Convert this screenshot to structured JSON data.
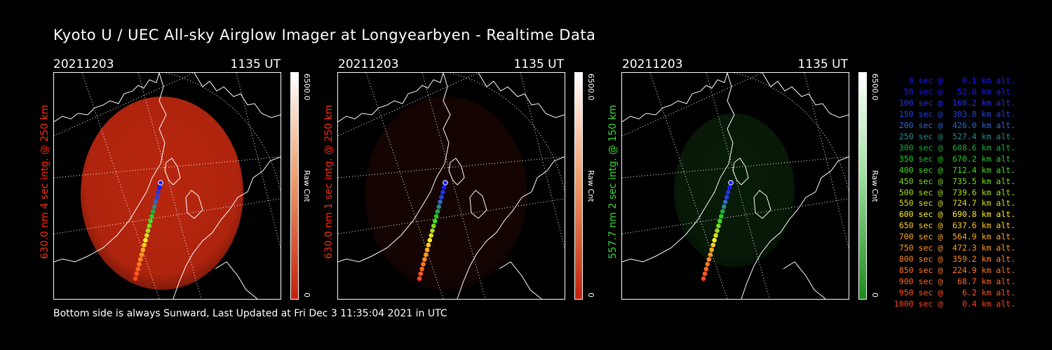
{
  "title": "Kyoto U / UEC All-sky Airglow Imager at Longyearbyen - Realtime Data",
  "panels": [
    {
      "date": "20211203",
      "time": "1135 UT",
      "side_label": "630.0 nm 4 sec intg. @ 250 km",
      "side_color": "#ff2a10",
      "colorbar_max": "6500.0",
      "colorbar_min": "0",
      "colorbar_unit": "Raw Cnt",
      "emission_color": "#cc2a10",
      "emission_intensity": 0.9
    },
    {
      "date": "20211203",
      "time": "1135 UT",
      "side_label": "630.0 nm 1 sec intg. @ 250 km",
      "side_color": "#ff2a10",
      "colorbar_max": "6500.0",
      "colorbar_min": "0",
      "colorbar_unit": "Raw Cnt",
      "emission_color": "#3a0c06",
      "emission_intensity": 0.35
    },
    {
      "date": "20211203",
      "time": "1135 UT",
      "side_label": "557.7 nm 2 sec intg. @ 150 km",
      "side_color": "#3ad83a",
      "colorbar_max": "6500.0",
      "colorbar_min": "0",
      "colorbar_unit": "Raw Cnt",
      "emission_color": "#123a12",
      "emission_intensity": 0.45
    }
  ],
  "legend": [
    {
      "text": "   0 sec @    0.1 km alt.",
      "color": "#1a1aff"
    },
    {
      "text": "  50 sec @   52.0 km alt.",
      "color": "#1a1aff"
    },
    {
      "text": " 100 sec @  160.2 km alt.",
      "color": "#2233ee"
    },
    {
      "text": " 150 sec @  303.8 km alt.",
      "color": "#2244dd"
    },
    {
      "text": " 200 sec @  426.0 km alt.",
      "color": "#3366cc"
    },
    {
      "text": " 250 sec @  527.4 km alt.",
      "color": "#2a8a8a"
    },
    {
      "text": " 300 sec @  608.6 km alt.",
      "color": "#22aa44"
    },
    {
      "text": " 350 sec @  670.2 km alt.",
      "color": "#22cc22"
    },
    {
      "text": " 400 sec @  712.4 km alt.",
      "color": "#44dd22"
    },
    {
      "text": " 450 sec @  735.5 km alt.",
      "color": "#77dd22"
    },
    {
      "text": " 500 sec @  739.6 km alt.",
      "color": "#aadd22"
    },
    {
      "text": " 550 sec @  724.7 km alt.",
      "color": "#dddd22"
    },
    {
      "text": " 600 sec @  690.8 km alt.",
      "color": "#ffee22"
    },
    {
      "text": " 650 sec @  637.6 km alt.",
      "color": "#ffcc22"
    },
    {
      "text": " 700 sec @  564.9 km alt.",
      "color": "#ffaa22"
    },
    {
      "text": " 750 sec @  472.3 km alt.",
      "color": "#ff9922"
    },
    {
      "text": " 800 sec @  359.2 km alt.",
      "color": "#ff8822"
    },
    {
      "text": " 850 sec @  224.9 km alt.",
      "color": "#ff7722"
    },
    {
      "text": " 900 sec @   68.7 km alt.",
      "color": "#ff6622"
    },
    {
      "text": " 950 sec @    6.2 km alt.",
      "color": "#ff5522"
    },
    {
      "text": "1000 sec @    0.4 km alt.",
      "color": "#ff4422"
    }
  ],
  "footer": "Bottom side is always Sunward, Last Updated at Fri Dec  3 11:35:04 2021 in UTC"
}
